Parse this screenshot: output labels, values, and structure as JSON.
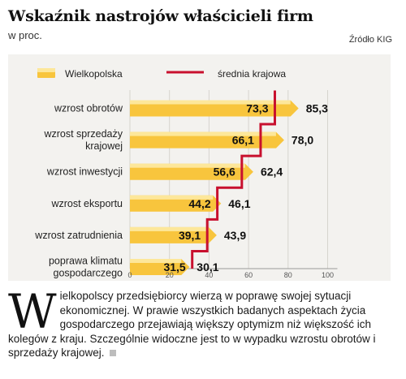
{
  "header": {
    "title": "Wskaźnik nastrojów właścicieli firm",
    "subtitle": "w proc.",
    "source": "Źródło KIG"
  },
  "legend": {
    "wielkopolska": "Wielkopolska",
    "srednia": "średnia krajowa"
  },
  "colors": {
    "bar": "#f8c53d",
    "bar_light": "#fde79a",
    "average_line": "#c8102e",
    "background": "#f3f2ef"
  },
  "chart_data": {
    "type": "bar",
    "orientation": "horizontal",
    "categories": [
      [
        "wzrost obrotów"
      ],
      [
        "wzrost sprzedaży",
        "krajowej"
      ],
      [
        "wzrost inwestycji"
      ],
      [
        "wzrost eksportu"
      ],
      [
        "wzrost zatrudnienia"
      ],
      [
        "poprawa klimatu",
        "gospodarczego"
      ]
    ],
    "series": [
      {
        "name": "Wielkopolska",
        "values": [
          85.3,
          78.0,
          62.4,
          46.1,
          43.9,
          30.1
        ]
      },
      {
        "name": "średnia krajowa",
        "values": [
          73.3,
          66.1,
          56.6,
          44.2,
          39.1,
          31.5
        ]
      }
    ],
    "value_labels_wielkopolska": [
      "85,3",
      "78,0",
      "62,4",
      "46,1",
      "43,9",
      "30,1"
    ],
    "value_labels_srednia": [
      "73,3",
      "66,1",
      "56,6",
      "44,2",
      "39,1",
      "31,5"
    ],
    "x_ticks": [
      "0",
      "20",
      "40",
      "60",
      "80",
      "100"
    ],
    "xlim": [
      0,
      100
    ],
    "grid": true
  },
  "article": {
    "dropcap": "W",
    "text": "ielkopolscy przedsiębiorcy wierzą w poprawę swojej sytuacji ekonomicznej. W prawie wszystkich badanych aspektach życia gospodarczego przejawiają większy optymizm niż większość ich kolegów z kraju. Szczególnie widoczne jest to w wypadku wzrostu obrotów i sprzedaży krajowej."
  }
}
